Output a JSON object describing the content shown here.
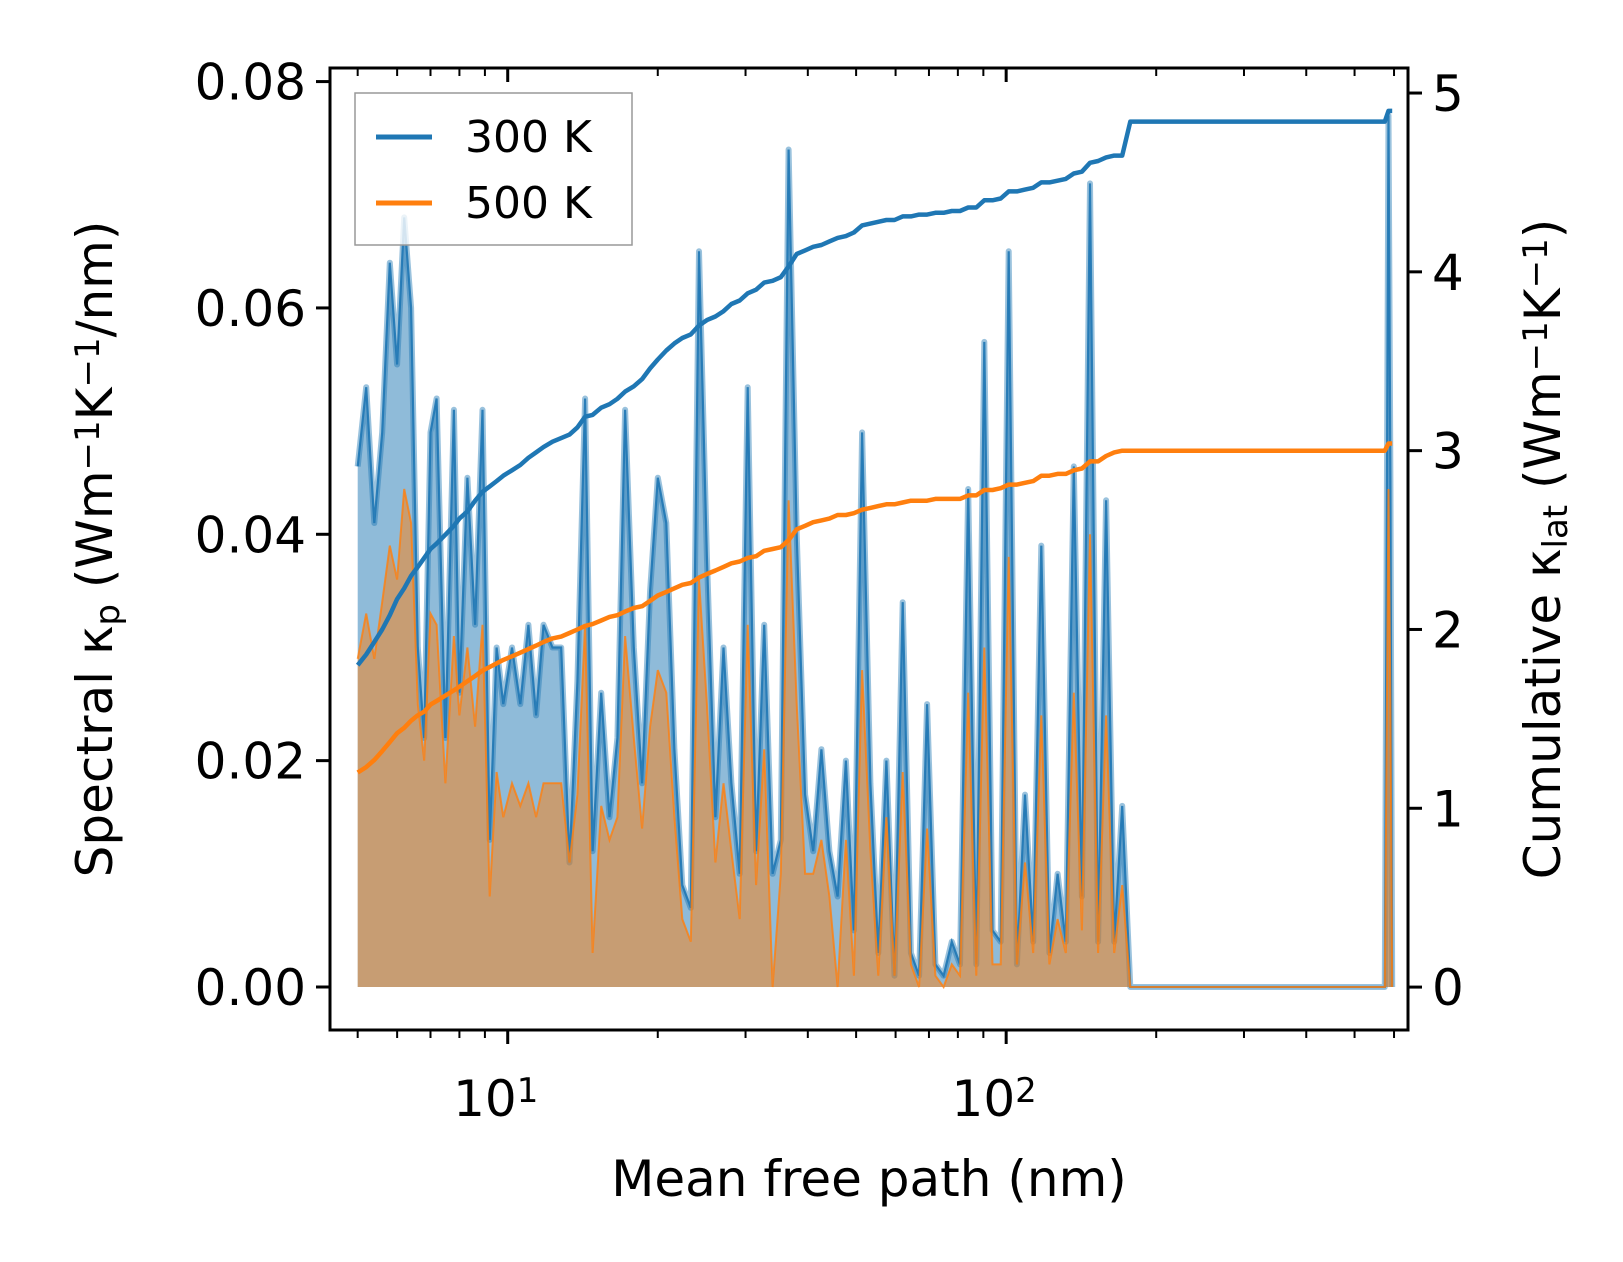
{
  "chart_data": {
    "type": "line",
    "title": "",
    "xlabel": "Mean free path (nm)",
    "xscale": "log",
    "xlim": [
      4.4,
      640
    ],
    "x_ticks": [
      {
        "value": 10,
        "base": "10",
        "exp": "1"
      },
      {
        "value": 100,
        "base": "10",
        "exp": "2"
      }
    ],
    "left_axis": {
      "label_parts": [
        "Spectral κ",
        "p",
        " (Wm",
        "−1",
        "K",
        "−1",
        "/nm)"
      ],
      "ylim": [
        -0.0038,
        0.0812
      ],
      "ticks": [
        "0.00",
        "0.02",
        "0.04",
        "0.06",
        "0.08"
      ]
    },
    "right_axis": {
      "label_parts": [
        "Cumulative κ",
        "lat",
        " (Wm",
        "−1",
        "K",
        "−1",
        ")"
      ],
      "ylim": [
        -0.24,
        5.14
      ],
      "ticks": [
        "0",
        "1",
        "2",
        "3",
        "4",
        "5"
      ]
    },
    "legend": {
      "position": "top-left",
      "entries": [
        "300 K",
        "500 K"
      ]
    },
    "colors": {
      "300 K": "#1f77b4",
      "500 K": "#ff7f0e"
    },
    "mfp": [
      5.0,
      5.2,
      5.4,
      5.6,
      5.8,
      6.0,
      6.2,
      6.4,
      6.6,
      6.8,
      7.0,
      7.2,
      7.5,
      7.8,
      8.0,
      8.3,
      8.6,
      8.9,
      9.2,
      9.5,
      9.8,
      10.2,
      10.6,
      11.0,
      11.4,
      11.8,
      12.3,
      12.8,
      13.3,
      13.8,
      14.3,
      14.8,
      15.4,
      16.0,
      16.6,
      17.2,
      17.9,
      18.6,
      19.3,
      20.0,
      20.8,
      21.6,
      22.4,
      23.3,
      24.2,
      25.1,
      26.1,
      27.1,
      28.1,
      29.2,
      30.3,
      31.5,
      32.7,
      34.0,
      35.3,
      36.6,
      38.0,
      39.5,
      41.0,
      42.6,
      44.2,
      45.9,
      47.7,
      49.5,
      51.4,
      53.4,
      55.4,
      57.5,
      59.7,
      62.0,
      64.4,
      66.9,
      69.4,
      72.1,
      74.9,
      77.8,
      80.8,
      83.9,
      87.1,
      90.4,
      93.9,
      97.5,
      101.2,
      105.1,
      109.1,
      113.3,
      117.6,
      122.1,
      126.8,
      131.7,
      136.7,
      141.9,
      147.3,
      152.9,
      158.7,
      164.7,
      170.9,
      177.4,
      575,
      585,
      590,
      595
    ],
    "series": [
      {
        "name": "300 K",
        "spectral": [
          0.046,
          0.053,
          0.041,
          0.049,
          0.064,
          0.055,
          0.068,
          0.06,
          0.03,
          0.022,
          0.049,
          0.052,
          0.022,
          0.051,
          0.026,
          0.045,
          0.032,
          0.051,
          0.013,
          0.03,
          0.025,
          0.03,
          0.025,
          0.032,
          0.024,
          0.032,
          0.03,
          0.03,
          0.011,
          0.027,
          0.052,
          0.012,
          0.026,
          0.015,
          0.022,
          0.051,
          0.03,
          0.018,
          0.035,
          0.045,
          0.041,
          0.021,
          0.009,
          0.007,
          0.065,
          0.038,
          0.015,
          0.03,
          0.018,
          0.01,
          0.053,
          0.012,
          0.032,
          0.01,
          0.013,
          0.074,
          0.04,
          0.017,
          0.012,
          0.021,
          0.012,
          0.008,
          0.02,
          0.005,
          0.049,
          0.018,
          0.003,
          0.02,
          0.001,
          0.034,
          0.003,
          0.001,
          0.025,
          0.002,
          0.001,
          0.004,
          0.002,
          0.044,
          0.002,
          0.057,
          0.005,
          0.004,
          0.065,
          0.002,
          0.017,
          0.004,
          0.039,
          0.003,
          0.01,
          0.004,
          0.046,
          0.008,
          0.071,
          0.004,
          0.043,
          0.004,
          0.016,
          0.0,
          0.0,
          0.077,
          0.045,
          0.0
        ],
        "cumulative": [
          1.8,
          1.86,
          1.93,
          2.0,
          2.08,
          2.17,
          2.23,
          2.3,
          2.35,
          2.4,
          2.45,
          2.48,
          2.53,
          2.58,
          2.62,
          2.66,
          2.72,
          2.77,
          2.8,
          2.83,
          2.86,
          2.89,
          2.92,
          2.96,
          2.99,
          3.02,
          3.05,
          3.07,
          3.09,
          3.13,
          3.19,
          3.2,
          3.24,
          3.26,
          3.29,
          3.33,
          3.36,
          3.4,
          3.46,
          3.51,
          3.56,
          3.6,
          3.63,
          3.65,
          3.7,
          3.73,
          3.75,
          3.78,
          3.82,
          3.84,
          3.88,
          3.9,
          3.94,
          3.95,
          3.97,
          4.03,
          4.1,
          4.12,
          4.14,
          4.15,
          4.17,
          4.19,
          4.2,
          4.22,
          4.26,
          4.27,
          4.28,
          4.29,
          4.29,
          4.31,
          4.31,
          4.32,
          4.32,
          4.33,
          4.33,
          4.34,
          4.34,
          4.36,
          4.36,
          4.4,
          4.4,
          4.41,
          4.45,
          4.45,
          4.46,
          4.47,
          4.5,
          4.5,
          4.51,
          4.52,
          4.55,
          4.56,
          4.61,
          4.62,
          4.64,
          4.65,
          4.65,
          4.84,
          4.84,
          4.9,
          4.9,
          4.9
        ]
      },
      {
        "name": "500 K",
        "spectral": [
          0.029,
          0.033,
          0.029,
          0.034,
          0.039,
          0.036,
          0.044,
          0.041,
          0.025,
          0.02,
          0.033,
          0.032,
          0.018,
          0.031,
          0.024,
          0.03,
          0.023,
          0.032,
          0.008,
          0.019,
          0.015,
          0.018,
          0.016,
          0.018,
          0.015,
          0.018,
          0.018,
          0.018,
          0.011,
          0.017,
          0.032,
          0.003,
          0.016,
          0.013,
          0.015,
          0.031,
          0.022,
          0.014,
          0.023,
          0.028,
          0.026,
          0.015,
          0.006,
          0.004,
          0.036,
          0.025,
          0.011,
          0.018,
          0.012,
          0.006,
          0.032,
          0.009,
          0.021,
          0.0,
          0.01,
          0.043,
          0.025,
          0.01,
          0.01,
          0.013,
          0.008,
          0.0,
          0.013,
          0.001,
          0.028,
          0.012,
          0.001,
          0.015,
          0.001,
          0.019,
          0.002,
          0.0,
          0.014,
          0.001,
          0.0,
          0.002,
          0.001,
          0.026,
          0.001,
          0.03,
          0.002,
          0.002,
          0.038,
          0.002,
          0.011,
          0.003,
          0.024,
          0.002,
          0.006,
          0.003,
          0.026,
          0.005,
          0.04,
          0.003,
          0.024,
          0.003,
          0.009,
          0.0,
          0.0,
          0.044,
          0.025,
          0.0
        ],
        "cumulative": [
          1.2,
          1.23,
          1.27,
          1.32,
          1.37,
          1.42,
          1.45,
          1.49,
          1.52,
          1.54,
          1.58,
          1.6,
          1.63,
          1.66,
          1.68,
          1.71,
          1.74,
          1.77,
          1.79,
          1.81,
          1.83,
          1.85,
          1.87,
          1.89,
          1.91,
          1.93,
          1.95,
          1.96,
          1.98,
          2.0,
          2.02,
          2.03,
          2.05,
          2.07,
          2.08,
          2.1,
          2.12,
          2.13,
          2.16,
          2.19,
          2.21,
          2.23,
          2.25,
          2.26,
          2.29,
          2.31,
          2.33,
          2.35,
          2.37,
          2.38,
          2.4,
          2.41,
          2.44,
          2.45,
          2.46,
          2.5,
          2.56,
          2.58,
          2.6,
          2.61,
          2.62,
          2.64,
          2.64,
          2.65,
          2.67,
          2.68,
          2.69,
          2.7,
          2.7,
          2.71,
          2.72,
          2.72,
          2.72,
          2.73,
          2.73,
          2.73,
          2.73,
          2.75,
          2.75,
          2.78,
          2.78,
          2.79,
          2.81,
          2.81,
          2.82,
          2.83,
          2.86,
          2.86,
          2.87,
          2.87,
          2.89,
          2.9,
          2.94,
          2.94,
          2.97,
          2.99,
          3.0,
          3.0,
          3.0,
          3.04,
          3.04,
          3.04
        ]
      }
    ]
  }
}
